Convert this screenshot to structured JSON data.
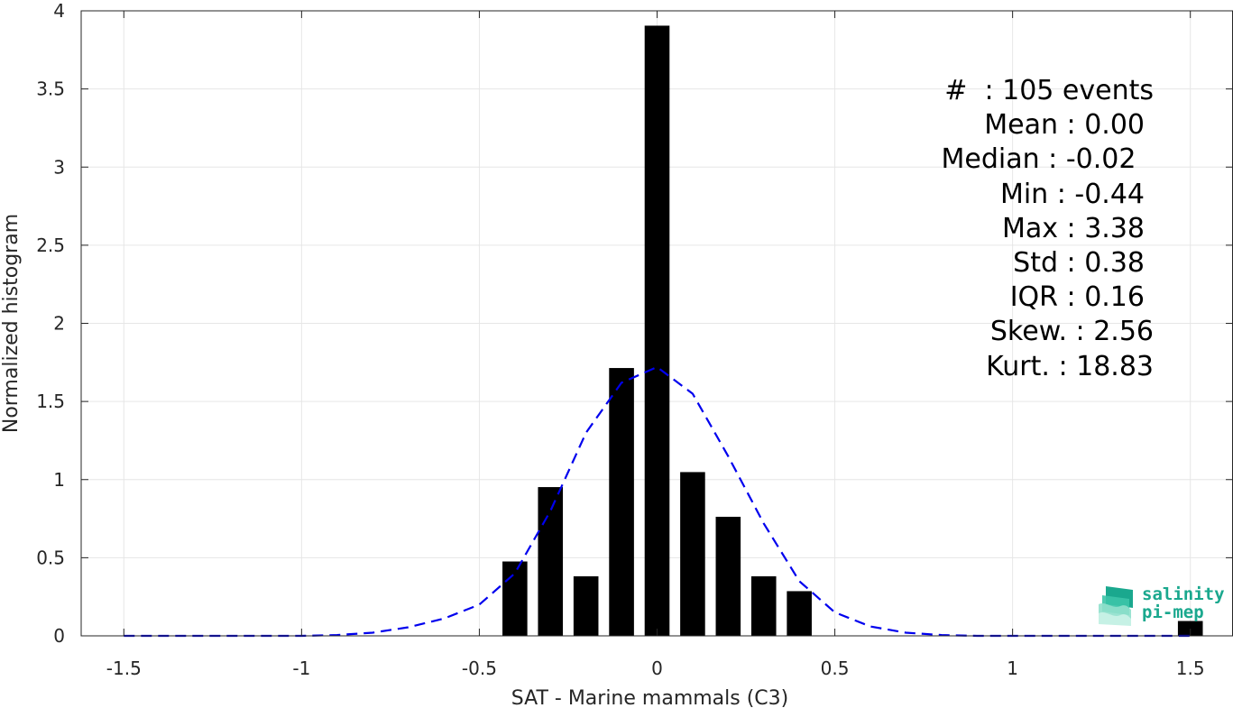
{
  "chart_data": {
    "type": "bar",
    "xlabel": "SAT - Marine mammals (C3)",
    "ylabel": "Normalized histogram",
    "xlim": [
      -1.62,
      1.62
    ],
    "ylim": [
      0,
      4
    ],
    "xticks": [
      "-1.5",
      "-1",
      "-0.5",
      "0",
      "0.5",
      "1",
      "1.5"
    ],
    "yticks": [
      "0",
      "0.5",
      "1",
      "1.5",
      "2",
      "2.5",
      "3",
      "3.5",
      "4"
    ],
    "grid": true,
    "bar_color": "#000000",
    "bar_width": 0.07,
    "bars": {
      "x": [
        -0.4,
        -0.3,
        -0.2,
        -0.1,
        0.0,
        0.1,
        0.2,
        0.3,
        0.4,
        1.5
      ],
      "values": [
        0.476,
        0.952,
        0.381,
        1.714,
        3.905,
        1.048,
        0.762,
        0.381,
        0.286,
        0.095
      ]
    },
    "fit_curve": {
      "style": "dashed",
      "color": "#0000ee",
      "x": [
        -1.5,
        -1.4,
        -1.3,
        -1.2,
        -1.1,
        -1.0,
        -0.9,
        -0.8,
        -0.7,
        -0.6,
        -0.5,
        -0.4,
        -0.3,
        -0.2,
        -0.1,
        0.0,
        0.1,
        0.2,
        0.3,
        0.4,
        0.5,
        0.6,
        0.7,
        0.8,
        0.9,
        1.0,
        1.1,
        1.2,
        1.3,
        1.4,
        1.5
      ],
      "y": [
        0,
        0,
        0,
        0,
        0,
        0,
        0.005,
        0.02,
        0.055,
        0.11,
        0.2,
        0.4,
        0.8,
        1.3,
        1.62,
        1.72,
        1.55,
        1.15,
        0.72,
        0.35,
        0.15,
        0.06,
        0.02,
        0.005,
        0,
        0,
        0,
        0,
        0,
        0,
        0
      ]
    },
    "annotations": [
      "#  : 105 events",
      "Mean : 0.00",
      "Median : -0.02 ",
      "Min : -0.44",
      "Max : 3.38",
      "Std : 0.38",
      "IQR : 0.16",
      "Skew. : 2.56",
      "Kurt. : 18.83"
    ]
  },
  "logo": {
    "line1": "salinity",
    "line2": "pi-mep",
    "color": "#1aa88e"
  }
}
